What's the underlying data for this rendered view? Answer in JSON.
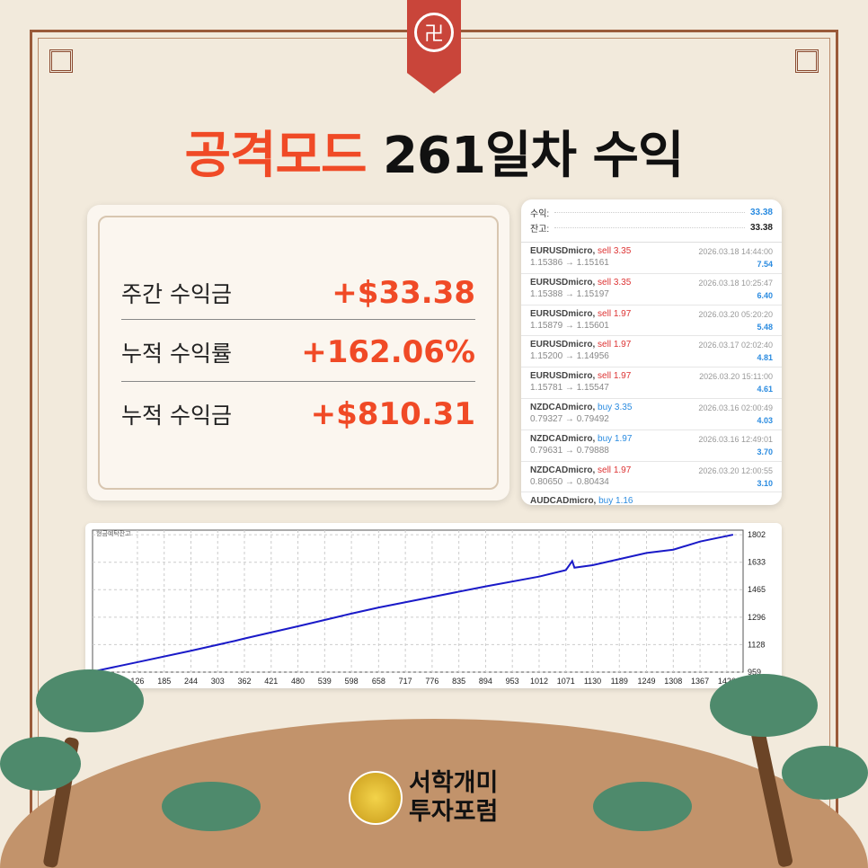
{
  "title": {
    "highlight": "공격모드",
    "rest": "261일차 수익"
  },
  "summary": [
    {
      "label": "주간 수익금",
      "value": "+$33.38"
    },
    {
      "label": "누적 수익률",
      "value": "+162.06%"
    },
    {
      "label": "누적 수익금",
      "value": "+$810.31"
    }
  ],
  "account": {
    "profit_label": "수익:",
    "profit": "33.38",
    "balance_label": "잔고:",
    "balance": "33.38"
  },
  "trades": [
    {
      "symbol": "EURUSDmicro,",
      "side": "sell",
      "lots": "3.35",
      "prices": "1.15386 → 1.15161",
      "time": "2026.03.18 14:44:00",
      "profit": "7.54"
    },
    {
      "symbol": "EURUSDmicro,",
      "side": "sell",
      "lots": "3.35",
      "prices": "1.15388 → 1.15197",
      "time": "2026.03.18 10:25:47",
      "profit": "6.40"
    },
    {
      "symbol": "EURUSDmicro,",
      "side": "sell",
      "lots": "1.97",
      "prices": "1.15879 → 1.15601",
      "time": "2026.03.20 05:20:20",
      "profit": "5.48"
    },
    {
      "symbol": "EURUSDmicro,",
      "side": "sell",
      "lots": "1.97",
      "prices": "1.15200 → 1.14956",
      "time": "2026.03.17 02:02:40",
      "profit": "4.81"
    },
    {
      "symbol": "EURUSDmicro,",
      "side": "sell",
      "lots": "1.97",
      "prices": "1.15781 → 1.15547",
      "time": "2026.03.20 15:11:00",
      "profit": "4.61"
    },
    {
      "symbol": "NZDCADmicro,",
      "side": "buy",
      "lots": "3.35",
      "prices": "0.79327 → 0.79492",
      "time": "2026.03.16 02:00:49",
      "profit": "4.03"
    },
    {
      "symbol": "NZDCADmicro,",
      "side": "buy",
      "lots": "1.97",
      "prices": "0.79631 → 0.79888",
      "time": "2026.03.16 12:49:01",
      "profit": "3.70"
    },
    {
      "symbol": "NZDCADmicro,",
      "side": "sell",
      "lots": "1.97",
      "prices": "0.80650 → 0.80434",
      "time": "2026.03.20 12:00:55",
      "profit": "3.10"
    },
    {
      "symbol": "AUDCADmicro,",
      "side": "buy",
      "lots": "1.16",
      "prices": "",
      "time": "",
      "profit": ""
    }
  ],
  "chart_data": {
    "type": "line",
    "title": "현금예탁잔고",
    "xlim": [
      27,
      1462
    ],
    "ylim": [
      959,
      1830
    ],
    "xticks": [
      126,
      185,
      244,
      303,
      362,
      421,
      480,
      539,
      598,
      658,
      717,
      776,
      835,
      894,
      953,
      1012,
      1071,
      1130,
      1189,
      1249,
      1308,
      1367,
      1426
    ],
    "yticks": [
      959,
      1128,
      1296,
      1465,
      1633,
      1802
    ],
    "grid": true,
    "color": "#1a1ac8",
    "x": [
      27,
      126,
      244,
      340,
      362,
      480,
      598,
      658,
      776,
      894,
      1012,
      1071,
      1085,
      1090,
      1130,
      1249,
      1308,
      1367,
      1440
    ],
    "y": [
      962,
      1020,
      1090,
      1150,
      1165,
      1240,
      1318,
      1355,
      1420,
      1485,
      1545,
      1585,
      1640,
      1600,
      1615,
      1690,
      1710,
      1760,
      1802
    ]
  },
  "brand": {
    "line1": "서학개미",
    "line2": "투자포럼"
  },
  "colors": {
    "accent": "#f04a26",
    "profit_blue": "#2a8be0",
    "sell_red": "#d33"
  }
}
